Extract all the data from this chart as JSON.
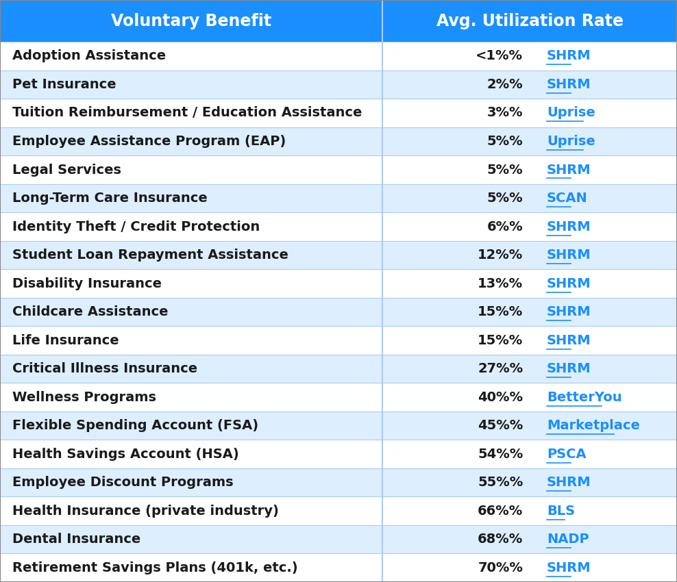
{
  "header": [
    "Voluntary Benefit",
    "Avg. Utilization Rate"
  ],
  "rows": [
    [
      "Adoption Assistance",
      "<1%",
      "SHRM"
    ],
    [
      "Pet Insurance",
      "2%",
      "SHRM"
    ],
    [
      "Tuition Reimbursement / Education Assistance",
      "3%",
      "Uprise"
    ],
    [
      "Employee Assistance Program (EAP)",
      "5%",
      "Uprise"
    ],
    [
      "Legal Services",
      "5%",
      "SHRM"
    ],
    [
      "Long-Term Care Insurance",
      "5%",
      "SCAN"
    ],
    [
      "Identity Theft / Credit Protection",
      "6%",
      "SHRM"
    ],
    [
      "Student Loan Repayment Assistance",
      "12%",
      "SHRM"
    ],
    [
      "Disability Insurance",
      "13%",
      "SHRM"
    ],
    [
      "Childcare Assistance",
      "15%",
      "SHRM"
    ],
    [
      "Life Insurance",
      "15%",
      "SHRM"
    ],
    [
      "Critical Illness Insurance",
      "27%",
      "SHRM"
    ],
    [
      "Wellness Programs",
      "40%",
      "BetterYou"
    ],
    [
      "Flexible Spending Account (FSA)",
      "45%",
      "Marketplace"
    ],
    [
      "Health Savings Account (HSA)",
      "54%",
      "PSCA"
    ],
    [
      "Employee Discount Programs",
      "55%",
      "SHRM"
    ],
    [
      "Health Insurance (private industry)",
      "66%",
      "BLS"
    ],
    [
      "Dental Insurance",
      "68%",
      "NADP"
    ],
    [
      "Retirement Savings Plans (401k, etc.)",
      "70%",
      "SHRM"
    ]
  ],
  "header_bg": "#1a8fff",
  "header_text_color": "#ffffff",
  "row_bg_even": "#ffffff",
  "row_bg_odd": "#ddeeff",
  "row_text_color": "#1a1a1a",
  "link_color": "#1a8fff",
  "divider_color": "#aaccee",
  "border_color": "#888888",
  "col_split": 0.565,
  "header_fontsize": 17,
  "row_fontsize": 14
}
